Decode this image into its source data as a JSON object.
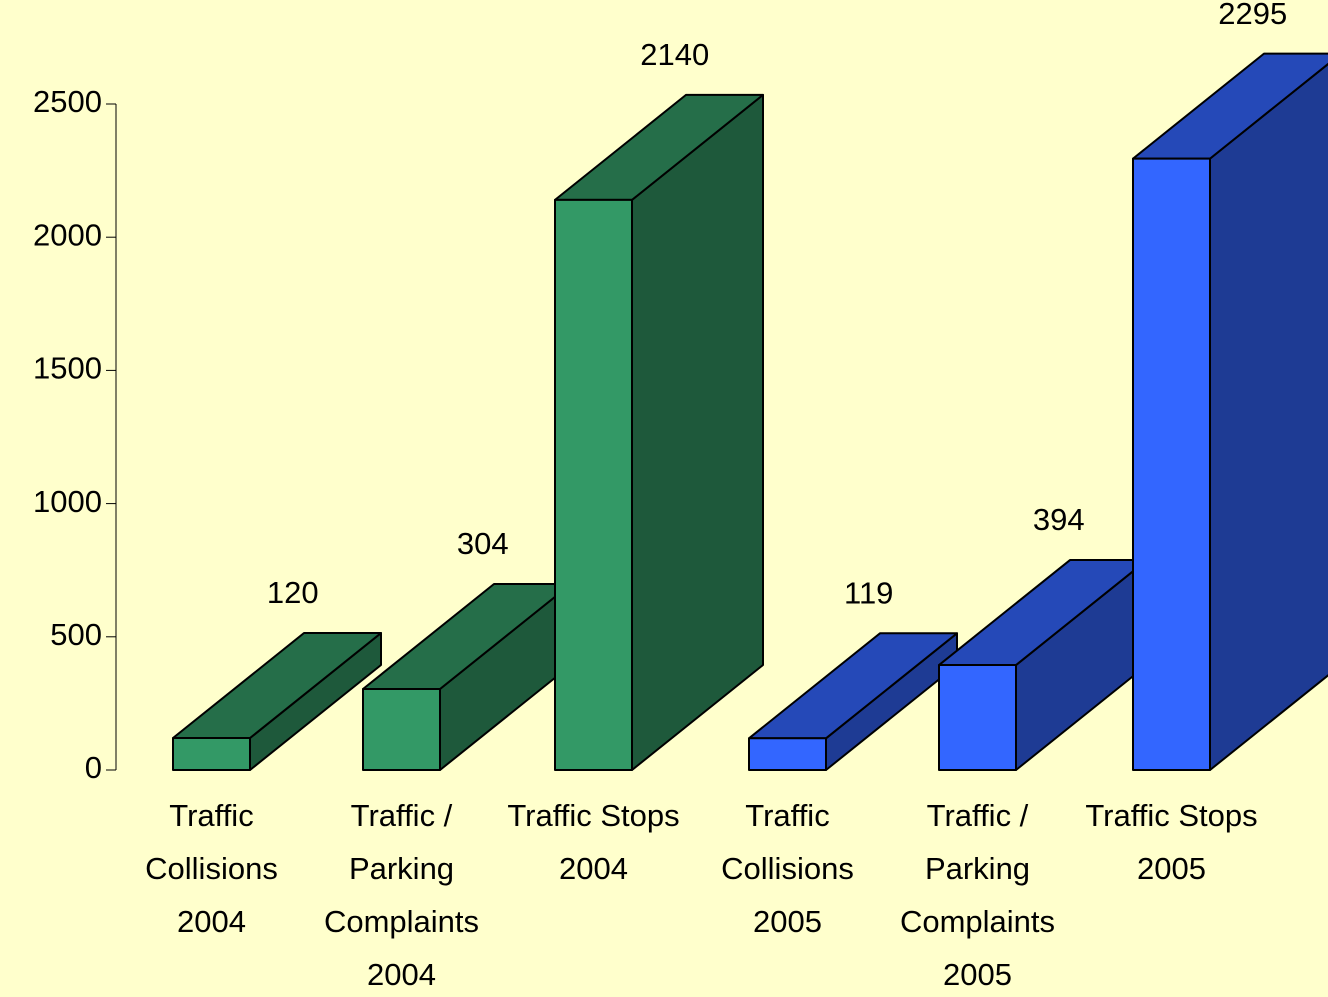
{
  "chart_data": {
    "type": "bar3d",
    "categories": [
      "Traffic Collisions 2004",
      "Traffic / Parking Complaints 2004",
      "Traffic Stops 2004",
      "Traffic Collisions 2005",
      "Traffic / Parking Complaints 2005",
      "Traffic Stops 2005"
    ],
    "values": [
      120,
      304,
      2140,
      119,
      394,
      2295
    ],
    "colors": [
      "#339966",
      "#339966",
      "#339966",
      "#3366ff",
      "#3366ff",
      "#3366ff"
    ],
    "ylim": [
      0,
      2500
    ],
    "yticks": [
      0,
      500,
      1000,
      1500,
      2000,
      2500
    ],
    "grid": false
  }
}
